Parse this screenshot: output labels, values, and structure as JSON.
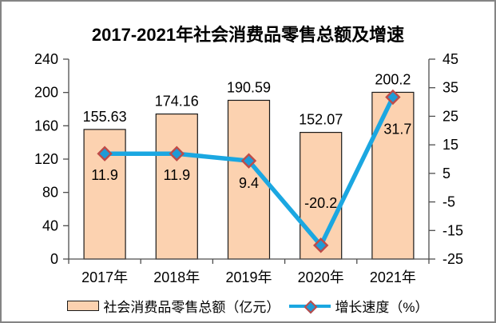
{
  "frame": {
    "border_color": "#848484",
    "background": "#FFFFFF"
  },
  "chart_data": {
    "type": "combo",
    "title": "2017-2021年社会消费品零售总额及增速",
    "categories": [
      "2017年",
      "2018年",
      "2019年",
      "2020年",
      "2021年"
    ],
    "series": [
      {
        "name": "社会消费品零售总额（亿元）",
        "type": "bar",
        "axis": "left",
        "values": [
          155.63,
          174.16,
          190.59,
          152.07,
          200.2
        ],
        "labels": [
          "155.63",
          "174.16",
          "190.59",
          "152.07",
          "200.2"
        ],
        "fill": "#FCD2B0",
        "stroke": "#1A1A1A"
      },
      {
        "name": "增长速度（%）",
        "type": "line",
        "axis": "right",
        "values": [
          11.9,
          11.9,
          9.4,
          -20.2,
          31.7
        ],
        "labels": [
          "11.9",
          "11.9",
          "9.4",
          "-20.2",
          "31.7"
        ],
        "label_offsets": [
          [
            0,
            27
          ],
          [
            0,
            27
          ],
          [
            0,
            28
          ],
          [
            0,
            -53
          ],
          [
            6,
            40
          ]
        ],
        "line_color": "#1BA7E1",
        "marker": "diamond",
        "marker_fill": "#1E9AD6",
        "marker_border": "#BE4B48"
      }
    ],
    "left_axis": {
      "min": 0,
      "max": 240,
      "step": 40,
      "ticks": [
        "240",
        "200",
        "160",
        "120",
        "80",
        "40",
        "0"
      ]
    },
    "right_axis": {
      "min": -25,
      "max": 45,
      "step": 10,
      "ticks": [
        "45",
        "35",
        "25",
        "15",
        "5",
        "-5",
        "-15",
        "-25"
      ]
    },
    "grid": false,
    "legend_position": "bottom",
    "axis_color": "#4D4D4D",
    "text_color": "#000000"
  }
}
